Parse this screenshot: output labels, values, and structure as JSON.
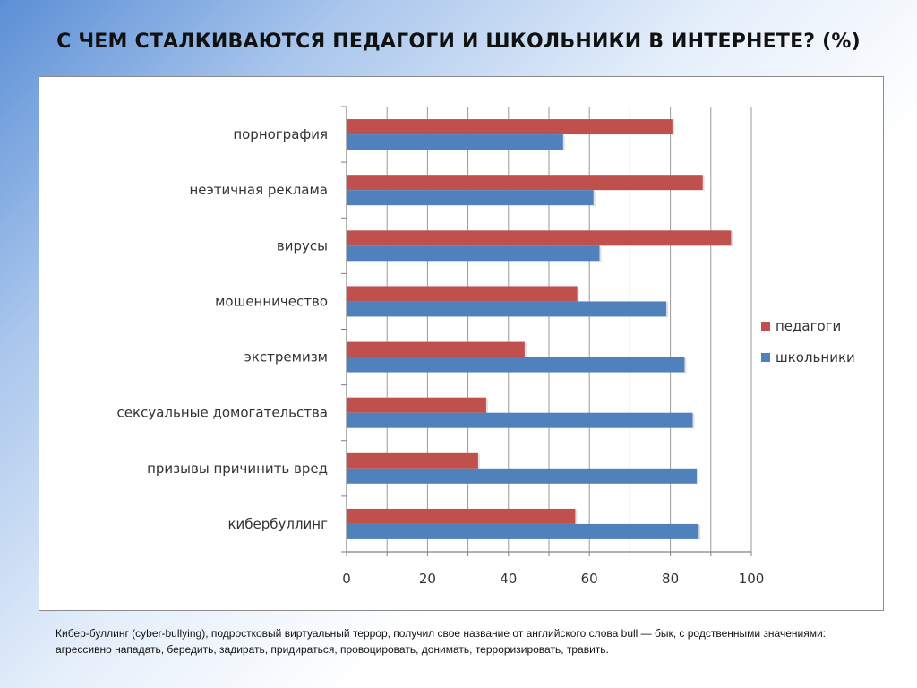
{
  "slide": {
    "title": "С ЧЕМ СТАЛКИВАЮТСЯ ПЕДАГОГИ И ШКОЛЬНИКИ В ИНТЕРНЕТЕ? (%)",
    "caption": "Кибер-буллинг (cyber-bullying), подростковый виртуальный террор, получил свое название от английского слова bull — бык, с родственными значениями: агрессивно нападать, бередить, задирать, придираться, провоцировать, донимать, терроризировать, травить."
  },
  "chart_data": {
    "type": "bar",
    "orientation": "horizontal",
    "categories": [
      "порнография",
      "неэтичная реклама",
      "вирусы",
      "мошенничество",
      "экстремизм",
      "сексуальные домогательства",
      "призывы причинить вред",
      "кибербуллинг"
    ],
    "series": [
      {
        "name": "педагоги",
        "color": "#c0504d",
        "values": [
          80.5,
          88,
          95,
          57,
          44,
          34.5,
          32.5,
          56.5
        ]
      },
      {
        "name": "школьники",
        "color": "#4f81bd",
        "values": [
          53.5,
          61,
          62.5,
          79,
          83.5,
          85.5,
          86.5,
          87
        ]
      }
    ],
    "xlim": [
      0,
      100
    ],
    "xticks": [
      0,
      20,
      40,
      60,
      80,
      100
    ],
    "grid": true,
    "legend_position": "right"
  }
}
